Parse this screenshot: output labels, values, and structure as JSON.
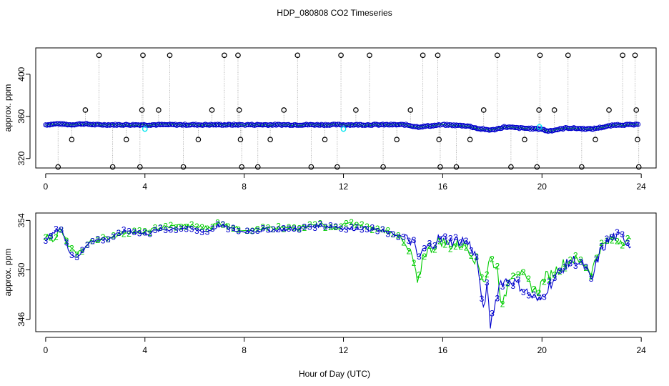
{
  "figure": {
    "title": "HDP_080808  CO2 Timeseries",
    "xlabel": "Hour of Day (UTC)"
  },
  "colors": {
    "series1": "#000000",
    "series2": "#00cc00",
    "series3": "#0000cc",
    "cyan": "#00e5ee",
    "line": "#9a9a9a"
  },
  "chart_data": [
    {
      "type": "scatter",
      "name": "top-panel",
      "ylabel": "approx. ppm",
      "xlim": [
        -0.4,
        24.6
      ],
      "ylim": [
        311,
        425
      ],
      "xticks": [
        0,
        4,
        8,
        12,
        16,
        20,
        24
      ],
      "yticks": [
        320,
        360,
        400
      ],
      "series": [
        {
          "name": "outliers",
          "marker": "open circle",
          "color": "#000000",
          "points": [
            [
              0.5,
              312
            ],
            [
              1.05,
              338
            ],
            [
              1.6,
              366
            ],
            [
              2.15,
              418
            ],
            [
              2.7,
              312
            ],
            [
              3.25,
              338
            ],
            [
              3.8,
              312
            ],
            [
              3.88,
              366
            ],
            [
              3.92,
              418
            ],
            [
              4.55,
              366
            ],
            [
              5.0,
              418
            ],
            [
              5.55,
              312
            ],
            [
              6.15,
              338
            ],
            [
              6.7,
              366
            ],
            [
              7.2,
              418
            ],
            [
              7.75,
              418
            ],
            [
              7.8,
              366
            ],
            [
              7.85,
              338
            ],
            [
              7.9,
              312
            ],
            [
              8.55,
              312
            ],
            [
              9.05,
              338
            ],
            [
              9.6,
              366
            ],
            [
              10.15,
              418
            ],
            [
              10.7,
              312
            ],
            [
              11.25,
              338
            ],
            [
              11.75,
              312
            ],
            [
              11.9,
              418
            ],
            [
              12.5,
              366
            ],
            [
              13.05,
              418
            ],
            [
              13.6,
              312
            ],
            [
              14.15,
              338
            ],
            [
              14.7,
              366
            ],
            [
              15.2,
              418
            ],
            [
              15.8,
              418
            ],
            [
              15.85,
              338
            ],
            [
              15.9,
              312
            ],
            [
              16.55,
              312
            ],
            [
              17.1,
              338
            ],
            [
              17.65,
              366
            ],
            [
              18.2,
              418
            ],
            [
              18.75,
              312
            ],
            [
              19.3,
              338
            ],
            [
              19.8,
              312
            ],
            [
              19.88,
              366
            ],
            [
              19.92,
              418
            ],
            [
              20.5,
              366
            ],
            [
              21.05,
              418
            ],
            [
              21.6,
              312
            ],
            [
              22.15,
              338
            ],
            [
              22.7,
              366
            ],
            [
              23.25,
              418
            ],
            [
              23.75,
              418
            ],
            [
              23.8,
              366
            ],
            [
              23.85,
              338
            ],
            [
              23.9,
              312
            ]
          ]
        },
        {
          "name": "cyan-markers",
          "marker": "open circle",
          "color": "#00e5ee",
          "points": [
            [
              4.0,
              348
            ],
            [
              12.0,
              348
            ],
            [
              19.9,
              350
            ]
          ]
        },
        {
          "name": "main-series",
          "marker": "open circle",
          "color": "#0000cc",
          "anchors": [
            [
              0.0,
              352
            ],
            [
              0.5,
              353
            ],
            [
              1.0,
              352
            ],
            [
              1.5,
              353
            ],
            [
              2.0,
              352
            ],
            [
              4.0,
              352
            ],
            [
              8.0,
              352
            ],
            [
              12.0,
              352
            ],
            [
              14.5,
              352
            ],
            [
              15.0,
              350
            ],
            [
              15.5,
              351
            ],
            [
              16.0,
              352
            ],
            [
              17.0,
              351
            ],
            [
              17.5,
              348
            ],
            [
              18.0,
              347
            ],
            [
              18.5,
              350
            ],
            [
              19.0,
              349
            ],
            [
              20.0,
              348
            ],
            [
              20.2,
              346
            ],
            [
              20.5,
              347
            ],
            [
              21.0,
              349
            ],
            [
              22.0,
              348
            ],
            [
              22.5,
              350
            ],
            [
              23.0,
              352
            ],
            [
              23.9,
              352
            ]
          ]
        }
      ]
    },
    {
      "type": "line",
      "name": "bottom-panel",
      "ylabel": "approx. ppm",
      "xlim": [
        -0.4,
        24.6
      ],
      "ylim": [
        345,
        354.6
      ],
      "xticks": [
        0,
        4,
        8,
        12,
        16,
        20,
        24
      ],
      "yticks": [
        346,
        350,
        354
      ],
      "series": [
        {
          "name": "2",
          "marker": "2",
          "color": "#00cc00",
          "anchors": [
            [
              0.0,
              352.8
            ],
            [
              0.3,
              352.4
            ],
            [
              0.6,
              353.3
            ],
            [
              0.9,
              352.0
            ],
            [
              1.2,
              351.3
            ],
            [
              1.5,
              351.6
            ],
            [
              1.8,
              352.3
            ],
            [
              2.5,
              352.6
            ],
            [
              3.3,
              353.1
            ],
            [
              4.0,
              353.0
            ],
            [
              4.5,
              353.4
            ],
            [
              5.5,
              353.6
            ],
            [
              6.5,
              353.4
            ],
            [
              7.0,
              353.8
            ],
            [
              7.8,
              353.3
            ],
            [
              8.5,
              353.3
            ],
            [
              10.0,
              353.4
            ],
            [
              11.0,
              353.7
            ],
            [
              11.7,
              353.3
            ],
            [
              12.2,
              353.8
            ],
            [
              12.8,
              353.5
            ],
            [
              13.6,
              353.2
            ],
            [
              14.2,
              352.9
            ],
            [
              14.5,
              351.8
            ],
            [
              14.8,
              351.0
            ],
            [
              15.0,
              348.5
            ],
            [
              15.2,
              351.2
            ],
            [
              15.5,
              351.7
            ],
            [
              15.9,
              352.4
            ],
            [
              16.3,
              352.0
            ],
            [
              16.8,
              352.1
            ],
            [
              17.1,
              351.6
            ],
            [
              17.4,
              350.5
            ],
            [
              17.7,
              349.0
            ],
            [
              17.9,
              351.0
            ],
            [
              18.2,
              350.1
            ],
            [
              18.4,
              346.8
            ],
            [
              18.7,
              349.6
            ],
            [
              19.0,
              350.0
            ],
            [
              19.5,
              348.8
            ],
            [
              19.8,
              348.2
            ],
            [
              20.1,
              349.4
            ],
            [
              20.4,
              349.7
            ],
            [
              20.8,
              350.4
            ],
            [
              21.2,
              350.9
            ],
            [
              21.7,
              350.5
            ],
            [
              22.0,
              349.8
            ],
            [
              22.3,
              351.7
            ],
            [
              22.8,
              352.5
            ],
            [
              23.3,
              352.4
            ],
            [
              23.6,
              352.2
            ]
          ]
        },
        {
          "name": "3",
          "marker": "3",
          "color": "#0000cc",
          "anchors": [
            [
              0.0,
              352.5
            ],
            [
              0.3,
              352.9
            ],
            [
              0.6,
              353.5
            ],
            [
              0.9,
              351.7
            ],
            [
              1.2,
              351.0
            ],
            [
              1.5,
              351.5
            ],
            [
              1.8,
              352.4
            ],
            [
              2.5,
              352.5
            ],
            [
              3.3,
              353.2
            ],
            [
              4.0,
              352.9
            ],
            [
              4.5,
              353.2
            ],
            [
              5.5,
              353.4
            ],
            [
              6.5,
              353.1
            ],
            [
              7.0,
              353.6
            ],
            [
              7.8,
              353.1
            ],
            [
              8.5,
              353.2
            ],
            [
              10.0,
              353.3
            ],
            [
              11.0,
              353.6
            ],
            [
              11.7,
              353.5
            ],
            [
              12.2,
              353.3
            ],
            [
              12.8,
              353.4
            ],
            [
              13.6,
              353.1
            ],
            [
              14.2,
              352.8
            ],
            [
              14.5,
              352.5
            ],
            [
              14.8,
              352.3
            ],
            [
              15.0,
              350.9
            ],
            [
              15.2,
              351.5
            ],
            [
              15.5,
              352.0
            ],
            [
              15.9,
              352.6
            ],
            [
              16.3,
              352.3
            ],
            [
              16.8,
              352.4
            ],
            [
              17.1,
              352.0
            ],
            [
              17.4,
              350.8
            ],
            [
              17.6,
              346.6
            ],
            [
              17.8,
              348.8
            ],
            [
              17.9,
              345.3
            ],
            [
              18.0,
              346.3
            ],
            [
              18.3,
              349.0
            ],
            [
              18.7,
              349.2
            ],
            [
              19.0,
              348.9
            ],
            [
              19.5,
              348.0
            ],
            [
              19.9,
              347.4
            ],
            [
              20.1,
              348.2
            ],
            [
              20.5,
              349.3
            ],
            [
              20.9,
              350.3
            ],
            [
              21.3,
              350.8
            ],
            [
              21.7,
              350.3
            ],
            [
              22.0,
              349.0
            ],
            [
              22.3,
              351.3
            ],
            [
              22.8,
              352.7
            ],
            [
              23.3,
              352.6
            ],
            [
              23.6,
              351.9
            ]
          ]
        }
      ]
    }
  ]
}
